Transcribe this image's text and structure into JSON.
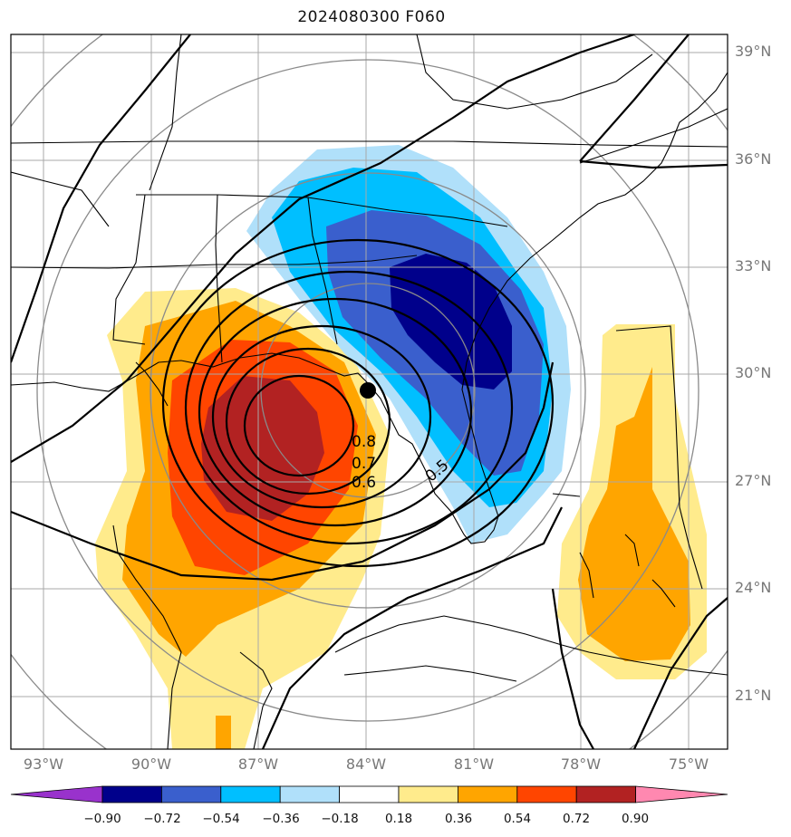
{
  "title": "2024080300 F060",
  "lat_labels": [
    "39°N",
    "36°N",
    "33°N",
    "30°N",
    "27°N",
    "24°N",
    "21°N"
  ],
  "lon_labels": [
    "93°W",
    "90°W",
    "87°W",
    "84°W",
    "81°W",
    "78°W",
    "75°W"
  ],
  "contour_labels": [
    "0.8",
    "0.7",
    "0.6",
    "0.5"
  ],
  "colorbar": {
    "ticks": [
      "−0.90",
      "−0.72",
      "−0.54",
      "−0.36",
      "−0.18",
      "0.18",
      "0.36",
      "0.54",
      "0.72",
      "0.90"
    ],
    "colors": [
      "#9932cc",
      "#00008b",
      "#3a5fcd",
      "#00bfff",
      "#b0e0fa",
      "#ffffff",
      "#ffeb8c",
      "#ffa500",
      "#ff4500",
      "#b22222",
      "#ff88b0"
    ]
  },
  "chart_data": {
    "type": "heatmap",
    "title": "2024080300 F060",
    "xlabel": "",
    "ylabel": "",
    "xlim": [
      "94°W",
      "74°W"
    ],
    "ylim": [
      "19.5°N",
      "39.5°N"
    ],
    "grid": true,
    "storm_center": {
      "lat": 29.5,
      "lon": -83.9
    },
    "contour_levels_labeled": [
      0.8,
      0.7,
      0.6,
      0.5
    ],
    "shading_levels": [
      -0.9,
      -0.72,
      -0.54,
      -0.36,
      -0.18,
      0.18,
      0.36,
      0.54,
      0.72,
      0.9
    ],
    "features": [
      {
        "name": "positive max west of center",
        "lat": 27.5,
        "lon": -86.8,
        "value": 0.8
      },
      {
        "name": "negative min northeast of center",
        "lat": 31.8,
        "lon": -81.8,
        "value": -0.9
      },
      {
        "name": "positive area east of Florida",
        "lat": 25.0,
        "lon": -77.0,
        "value": 0.5
      }
    ]
  }
}
